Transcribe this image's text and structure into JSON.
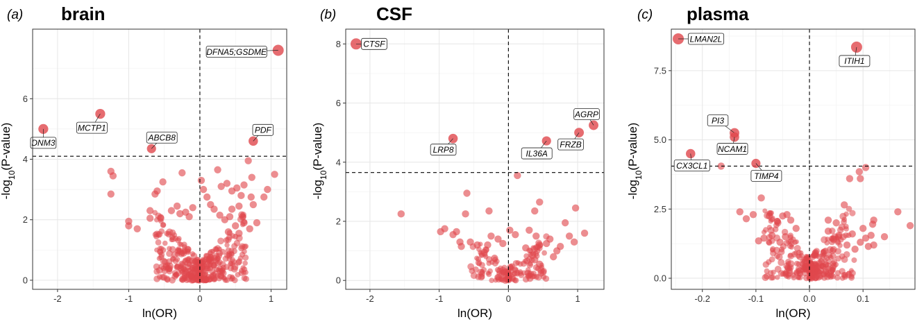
{
  "chart_data": [
    {
      "type": "scatter",
      "panel_letter": "a",
      "title": "brain",
      "xlabel": "ln(OR)",
      "ylabel": "-log10(P-value)",
      "xlim": [
        -2.35,
        1.22
      ],
      "ylim": [
        -0.3,
        8.3
      ],
      "x_ticks": [
        -2,
        -1,
        0,
        1
      ],
      "x_tick_labels": [
        "-2",
        "-1",
        "0",
        "1"
      ],
      "y_ticks": [
        0,
        2,
        4,
        6
      ],
      "y_tick_labels": [
        "0",
        "2",
        "4",
        "6"
      ],
      "threshold_y": 4.1,
      "vline_x": 0,
      "grid": true,
      "point_color": "#e0474c",
      "highlighted": [
        {
          "label": "DFNA5;GSDME",
          "x": 1.1,
          "y": 7.6,
          "size": 1.0
        },
        {
          "label": "MCTP1",
          "x": -1.4,
          "y": 5.5,
          "size": 0.75
        },
        {
          "label": "DNM3",
          "x": -2.2,
          "y": 5.0,
          "size": 0.75
        },
        {
          "label": "ABCB8",
          "x": -0.68,
          "y": 4.35,
          "size": 0.6
        },
        {
          "label": "PDF",
          "x": 0.75,
          "y": 4.6,
          "size": 0.65
        }
      ],
      "points": [
        [
          -1.25,
          3.6
        ],
        [
          -1.22,
          3.45
        ],
        [
          -1.25,
          2.85
        ],
        [
          -0.52,
          3.25
        ],
        [
          -0.25,
          3.55
        ],
        [
          -0.6,
          2.95
        ],
        [
          -0.63,
          2.85
        ],
        [
          -1.0,
          1.95
        ],
        [
          -1.0,
          1.8
        ],
        [
          -0.88,
          1.7
        ],
        [
          -0.7,
          2.3
        ],
        [
          -0.7,
          2.05
        ],
        [
          -0.55,
          2.05
        ],
        [
          -0.4,
          2.3
        ],
        [
          -0.32,
          2.45
        ],
        [
          -0.28,
          2.2
        ],
        [
          -0.2,
          2.25
        ],
        [
          -0.15,
          2.1
        ],
        [
          -0.1,
          2.4
        ],
        [
          0.02,
          3.3
        ],
        [
          0.05,
          3.0
        ],
        [
          0.1,
          2.75
        ],
        [
          0.25,
          3.65
        ],
        [
          0.3,
          3.1
        ],
        [
          0.38,
          3.2
        ],
        [
          0.45,
          2.95
        ],
        [
          0.52,
          3.05
        ],
        [
          0.58,
          2.8
        ],
        [
          0.62,
          3.15
        ],
        [
          0.68,
          3.95
        ],
        [
          0.73,
          3.4
        ],
        [
          0.72,
          2.75
        ],
        [
          0.9,
          2.75
        ],
        [
          0.95,
          3.0
        ],
        [
          1.05,
          3.5
        ],
        [
          0.75,
          2.5
        ],
        [
          0.55,
          2.45
        ],
        [
          0.45,
          2.35
        ],
        [
          0.42,
          2.1
        ],
        [
          0.35,
          2.0
        ],
        [
          0.28,
          2.15
        ],
        [
          0.2,
          2.35
        ],
        [
          0.15,
          2.5
        ],
        [
          0.6,
          2.1
        ],
        [
          0.5,
          1.8
        ],
        [
          0.62,
          1.9
        ],
        [
          0.7,
          1.7
        ],
        [
          0.8,
          1.9
        ],
        [
          0.55,
          1.55
        ],
        [
          0.4,
          1.6
        ]
      ]
    },
    {
      "type": "scatter",
      "panel_letter": "b",
      "title": "CSF",
      "xlabel": "ln(OR)",
      "ylabel": "-log10(P-value)",
      "xlim": [
        -2.35,
        1.38
      ],
      "ylim": [
        -0.3,
        8.5
      ],
      "x_ticks": [
        -2,
        -1,
        0,
        1
      ],
      "x_tick_labels": [
        "-2",
        "-1",
        "0",
        "1"
      ],
      "y_ticks": [
        0,
        2,
        4,
        6,
        8
      ],
      "y_tick_labels": [
        "0",
        "2",
        "4",
        "6",
        "8"
      ],
      "threshold_y": 3.65,
      "vline_x": 0,
      "grid": true,
      "point_color": "#e0474c",
      "highlighted": [
        {
          "label": "CTSF",
          "x": -2.2,
          "y": 8.0,
          "size": 1.0
        },
        {
          "label": "LRP8",
          "x": -0.8,
          "y": 4.8,
          "size": 0.65
        },
        {
          "label": "IL36A",
          "x": 0.55,
          "y": 4.72,
          "size": 0.6
        },
        {
          "label": "AGRP",
          "x": 1.23,
          "y": 5.25,
          "size": 0.7
        },
        {
          "label": "FRZB",
          "x": 1.02,
          "y": 5.0,
          "size": 0.7
        }
      ],
      "points": [
        [
          0.13,
          3.55
        ],
        [
          -1.55,
          2.25
        ],
        [
          -0.6,
          2.95
        ],
        [
          -0.62,
          2.25
        ],
        [
          -0.28,
          2.35
        ],
        [
          0.45,
          2.65
        ],
        [
          0.38,
          2.35
        ],
        [
          0.97,
          2.45
        ],
        [
          0.82,
          1.95
        ],
        [
          1.1,
          1.6
        ],
        [
          -0.98,
          1.65
        ],
        [
          -0.92,
          1.75
        ],
        [
          -0.75,
          1.65
        ],
        [
          -0.7,
          1.3
        ],
        [
          -0.68,
          1.15
        ],
        [
          -0.55,
          1.3
        ],
        [
          -0.45,
          1.2
        ],
        [
          -0.3,
          1.2
        ],
        [
          -0.25,
          1.5
        ],
        [
          -0.15,
          1.4
        ],
        [
          -0.08,
          1.25
        ],
        [
          0.02,
          1.7
        ],
        [
          0.1,
          1.55
        ],
        [
          0.3,
          1.7
        ],
        [
          0.4,
          1.5
        ],
        [
          0.45,
          1.2
        ],
        [
          0.55,
          1.25
        ],
        [
          0.6,
          1.4
        ],
        [
          0.7,
          1.0
        ],
        [
          0.75,
          1.15
        ],
        [
          0.88,
          1.5
        ],
        [
          0.95,
          1.3
        ],
        [
          -0.8,
          1.55
        ],
        [
          -0.35,
          0.95
        ],
        [
          0.25,
          1.1
        ],
        [
          0.65,
          0.8
        ],
        [
          0.35,
          0.85
        ],
        [
          -0.2,
          0.75
        ],
        [
          0.45,
          0.55
        ],
        [
          0.38,
          0.7
        ]
      ]
    },
    {
      "type": "scatter",
      "panel_letter": "c",
      "title": "plasma",
      "xlabel": "ln(OR)",
      "ylabel": "-log10(P-value)",
      "xlim": [
        -0.258,
        0.197
      ],
      "ylim": [
        -0.4,
        9.0
      ],
      "x_ticks": [
        -0.2,
        -0.1,
        0.0,
        0.1
      ],
      "x_tick_labels": [
        "-0.2",
        "-0.1",
        "0.0",
        "0.1"
      ],
      "y_ticks": [
        0.0,
        2.5,
        5.0,
        7.5
      ],
      "y_tick_labels": [
        "0.0",
        "2.5",
        "5.0",
        "7.5"
      ],
      "threshold_y": 4.05,
      "vline_x": 0,
      "grid": true,
      "point_color": "#e0474c",
      "highlighted": [
        {
          "label": "LMAN2L",
          "x": -0.245,
          "y": 8.65,
          "size": 1.0
        },
        {
          "label": "ITIH1",
          "x": 0.088,
          "y": 8.35,
          "size": 1.0
        },
        {
          "label": "PI3",
          "x": -0.14,
          "y": 5.25,
          "size": 0.7
        },
        {
          "label": "NCAM1",
          "x": -0.14,
          "y": 5.1,
          "size": 0.65
        },
        {
          "label": "CX3CL1",
          "x": -0.222,
          "y": 4.5,
          "size": 0.65
        },
        {
          "label": "TIMP4",
          "x": -0.1,
          "y": 4.15,
          "size": 0.6
        }
      ],
      "points": [
        [
          -0.165,
          4.05
        ],
        [
          0.105,
          4.0
        ],
        [
          0.093,
          3.85
        ],
        [
          0.095,
          3.6
        ],
        [
          0.075,
          3.6
        ],
        [
          0.065,
          2.65
        ],
        [
          0.165,
          2.4
        ],
        [
          0.188,
          1.9
        ],
        [
          0.12,
          2.1
        ],
        [
          0.118,
          1.95
        ],
        [
          -0.09,
          2.9
        ],
        [
          -0.13,
          2.4
        ],
        [
          -0.118,
          2.15
        ],
        [
          -0.105,
          2.3
        ],
        [
          -0.075,
          2.25
        ],
        [
          -0.06,
          2.05
        ],
        [
          -0.05,
          2.25
        ],
        [
          -0.042,
          2.3
        ],
        [
          -0.035,
          2.1
        ],
        [
          -0.025,
          1.8
        ],
        [
          -0.095,
          1.35
        ],
        [
          -0.085,
          1.45
        ],
        [
          -0.07,
          1.55
        ],
        [
          -0.055,
          1.3
        ],
        [
          -0.045,
          1.5
        ],
        [
          0.035,
          1.7
        ],
        [
          0.045,
          1.4
        ],
        [
          0.055,
          1.55
        ],
        [
          0.08,
          1.6
        ],
        [
          0.1,
          1.8
        ],
        [
          0.105,
          1.45
        ],
        [
          0.115,
          1.55
        ],
        [
          0.14,
          1.5
        ],
        [
          0.12,
          1.2
        ],
        [
          0.11,
          1.15
        ],
        [
          0.095,
          1.3
        ],
        [
          0.085,
          1.05
        ],
        [
          0.07,
          1.2
        ],
        [
          0.035,
          2.1
        ],
        [
          0.05,
          2.0
        ]
      ]
    }
  ]
}
